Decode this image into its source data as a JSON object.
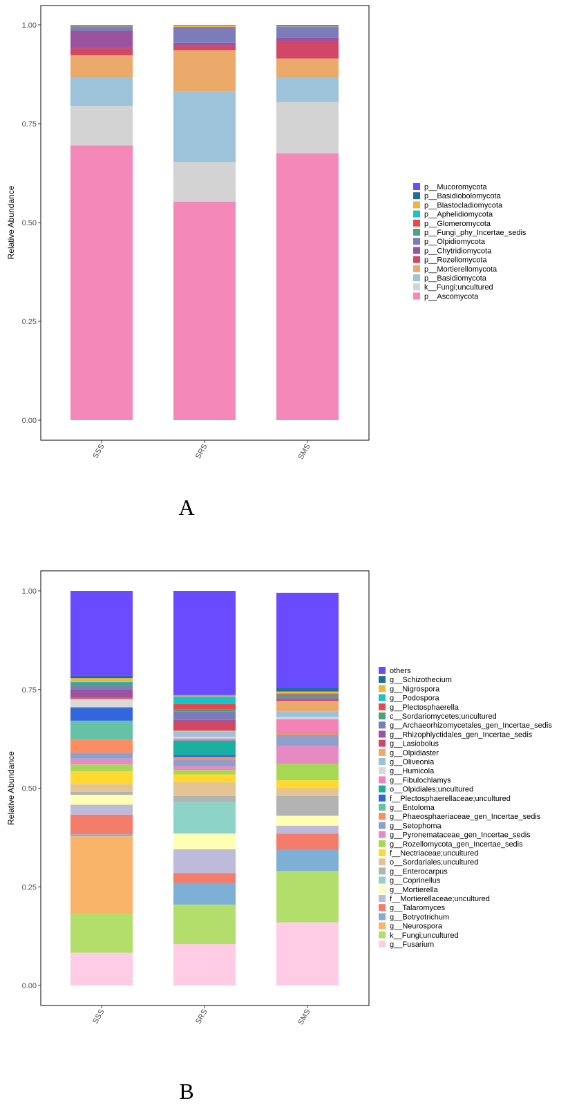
{
  "chart_data": [
    {
      "type": "bar",
      "stacked": true,
      "panel_label": "A",
      "ylabel": "Relative Abundance",
      "xlabel": "",
      "ylim": [
        0,
        1
      ],
      "yticks": [
        "0.00",
        "0.25",
        "0.50",
        "0.75",
        "1.00"
      ],
      "categories": [
        "SSS",
        "SRS",
        "SMS"
      ],
      "legend_position": "right",
      "series": [
        {
          "name": "p__Ascomycota",
          "color": "#F488B8",
          "values": [
            0.695,
            0.553,
            0.675
          ]
        },
        {
          "name": "k__Fungi;uncultured",
          "color": "#D3D3D3",
          "values": [
            0.1,
            0.1,
            0.13
          ]
        },
        {
          "name": "p__Basidiomycota",
          "color": "#9DC3DA",
          "values": [
            0.073,
            0.178,
            0.063
          ]
        },
        {
          "name": "p__Mortierellomycota",
          "color": "#EBAA69",
          "values": [
            0.055,
            0.105,
            0.047
          ]
        },
        {
          "name": "p__Rozellomycota",
          "color": "#D04865",
          "values": [
            0.018,
            0.011,
            0.044
          ]
        },
        {
          "name": "p__Chytridiomycota",
          "color": "#9A539F",
          "values": [
            0.044,
            0.008,
            0.009
          ]
        },
        {
          "name": "p__Olpidiomycota",
          "color": "#7B7CB9",
          "values": [
            0.007,
            0.038,
            0.026
          ]
        },
        {
          "name": "p__Fungi_phy_Incertae_sedis",
          "color": "#4EA27A",
          "values": [
            0.002,
            0.001,
            0.001
          ]
        },
        {
          "name": "p__Glomeromycota",
          "color": "#E6494D",
          "values": [
            0.002,
            0.001,
            0.001
          ]
        },
        {
          "name": "p__Aphelidiomycota",
          "color": "#19C3C9",
          "values": [
            0.002,
            0.0,
            0.003
          ]
        },
        {
          "name": "p__Blastocladiomycota",
          "color": "#F2B33F",
          "values": [
            0.001,
            0.004,
            0.0
          ]
        },
        {
          "name": "p__Basidiobolomycota",
          "color": "#1F6E98",
          "values": [
            0.001,
            0.001,
            0.001
          ]
        },
        {
          "name": "p__Mucoromycota",
          "color": "#6A4BFF",
          "values": [
            0.0,
            0.0,
            0.0
          ]
        }
      ]
    },
    {
      "type": "bar",
      "stacked": true,
      "panel_label": "B",
      "ylabel": "Relative Abundance",
      "xlabel": "",
      "ylim": [
        0,
        1
      ],
      "yticks": [
        "0.00",
        "0.25",
        "0.50",
        "0.75",
        "1.00"
      ],
      "categories": [
        "SSS",
        "SRS",
        "SMS"
      ],
      "legend_position": "right",
      "series": [
        {
          "name": "g__Fusarium",
          "color": "#FFCCE5",
          "values": [
            0.083,
            0.105,
            0.16
          ]
        },
        {
          "name": "k__Fungi;uncultured",
          "color": "#B4DE6C",
          "values": [
            0.1,
            0.1,
            0.13
          ]
        },
        {
          "name": "g__Neurospora",
          "color": "#F9B46A",
          "values": [
            0.195,
            0.0,
            0.0
          ]
        },
        {
          "name": "g__Botryotrichum",
          "color": "#7DB0D4",
          "values": [
            0.005,
            0.055,
            0.055
          ]
        },
        {
          "name": "g__Talaromyces",
          "color": "#F47C6B",
          "values": [
            0.05,
            0.025,
            0.04
          ]
        },
        {
          "name": "f__Mortierellaceae;uncultured",
          "color": "#BEBADA",
          "values": [
            0.025,
            0.06,
            0.02
          ]
        },
        {
          "name": "g__Mortierella",
          "color": "#FFFFB3",
          "values": [
            0.025,
            0.04,
            0.025
          ]
        },
        {
          "name": "g__Coprinellus",
          "color": "#8DD3C7",
          "values": [
            0.0,
            0.08,
            0.0
          ]
        },
        {
          "name": "g__Enterocarpus",
          "color": "#B3B3B3",
          "values": [
            0.008,
            0.015,
            0.05
          ]
        },
        {
          "name": "o__Sordariales;uncultured",
          "color": "#E5C494",
          "values": [
            0.02,
            0.035,
            0.02
          ]
        },
        {
          "name": "f__Nectriaceae;uncultured",
          "color": "#FFD92F",
          "values": [
            0.032,
            0.02,
            0.02
          ]
        },
        {
          "name": "g__Rozellomycota_gen_Incertae_sedis",
          "color": "#A6D854",
          "values": [
            0.017,
            0.011,
            0.042
          ]
        },
        {
          "name": "g__Pyronemataceae_gen_Incertae_sedis",
          "color": "#E78AC3",
          "values": [
            0.015,
            0.01,
            0.045
          ]
        },
        {
          "name": "g__Setophoma",
          "color": "#8DA0CB",
          "values": [
            0.015,
            0.015,
            0.027
          ]
        },
        {
          "name": "g__Phaeosphaeriaceae_gen_Incertae_sedis",
          "color": "#FC8D62",
          "values": [
            0.033,
            0.008,
            0.005
          ]
        },
        {
          "name": "g__Entoloma",
          "color": "#66C2A5",
          "values": [
            0.048,
            0.0,
            0.0
          ]
        },
        {
          "name": "f__Plectosphaerellaceae;uncultured",
          "color": "#3366DD",
          "values": [
            0.032,
            0.005,
            0.0
          ]
        },
        {
          "name": "o__Olpidiales;uncultured",
          "color": "#1AB0A0",
          "values": [
            0.002,
            0.037,
            0.001
          ]
        },
        {
          "name": "g__Fibulochlamys",
          "color": "#F482B5",
          "values": [
            0.001,
            0.005,
            0.035
          ]
        },
        {
          "name": "g__Humicola",
          "color": "#D9D9D9",
          "values": [
            0.018,
            0.004,
            0.005
          ]
        },
        {
          "name": "g__Oliveonia",
          "color": "#9AC3DB",
          "values": [
            0.001,
            0.014,
            0.015
          ]
        },
        {
          "name": "g__Olpidiaster",
          "color": "#EBAA69",
          "values": [
            0.002,
            0.002,
            0.026
          ]
        },
        {
          "name": "g__Lasiobolus",
          "color": "#D04865",
          "values": [
            0.002,
            0.023,
            0.004
          ]
        },
        {
          "name": "g__Rhizophlyctidales_gen_Incertae_sedis",
          "color": "#9A539F",
          "values": [
            0.022,
            0.004,
            0.002
          ]
        },
        {
          "name": "g__Archaeorhizomycetales_gen_Incertae_sedis",
          "color": "#7B7CB9",
          "values": [
            0.008,
            0.022,
            0.004
          ]
        },
        {
          "name": "c__Sordariomycetes;uncultured",
          "color": "#4EA27A",
          "values": [
            0.005,
            0.004,
            0.006
          ]
        },
        {
          "name": "g__Plectosphaerella",
          "color": "#E6494D",
          "values": [
            0.003,
            0.014,
            0.002
          ]
        },
        {
          "name": "g__Podospora",
          "color": "#19C3C9",
          "values": [
            0.002,
            0.019,
            0.001
          ]
        },
        {
          "name": "g__Nigrospora",
          "color": "#F2B33F",
          "values": [
            0.01,
            0.003,
            0.005
          ]
        },
        {
          "name": "g__Schizothecium",
          "color": "#1F6E98",
          "values": [
            0.007,
            0.001,
            0.009
          ]
        },
        {
          "name": "others",
          "color": "#6A4BFF",
          "values": [
            0.215,
            0.27,
            0.241
          ]
        }
      ]
    }
  ]
}
